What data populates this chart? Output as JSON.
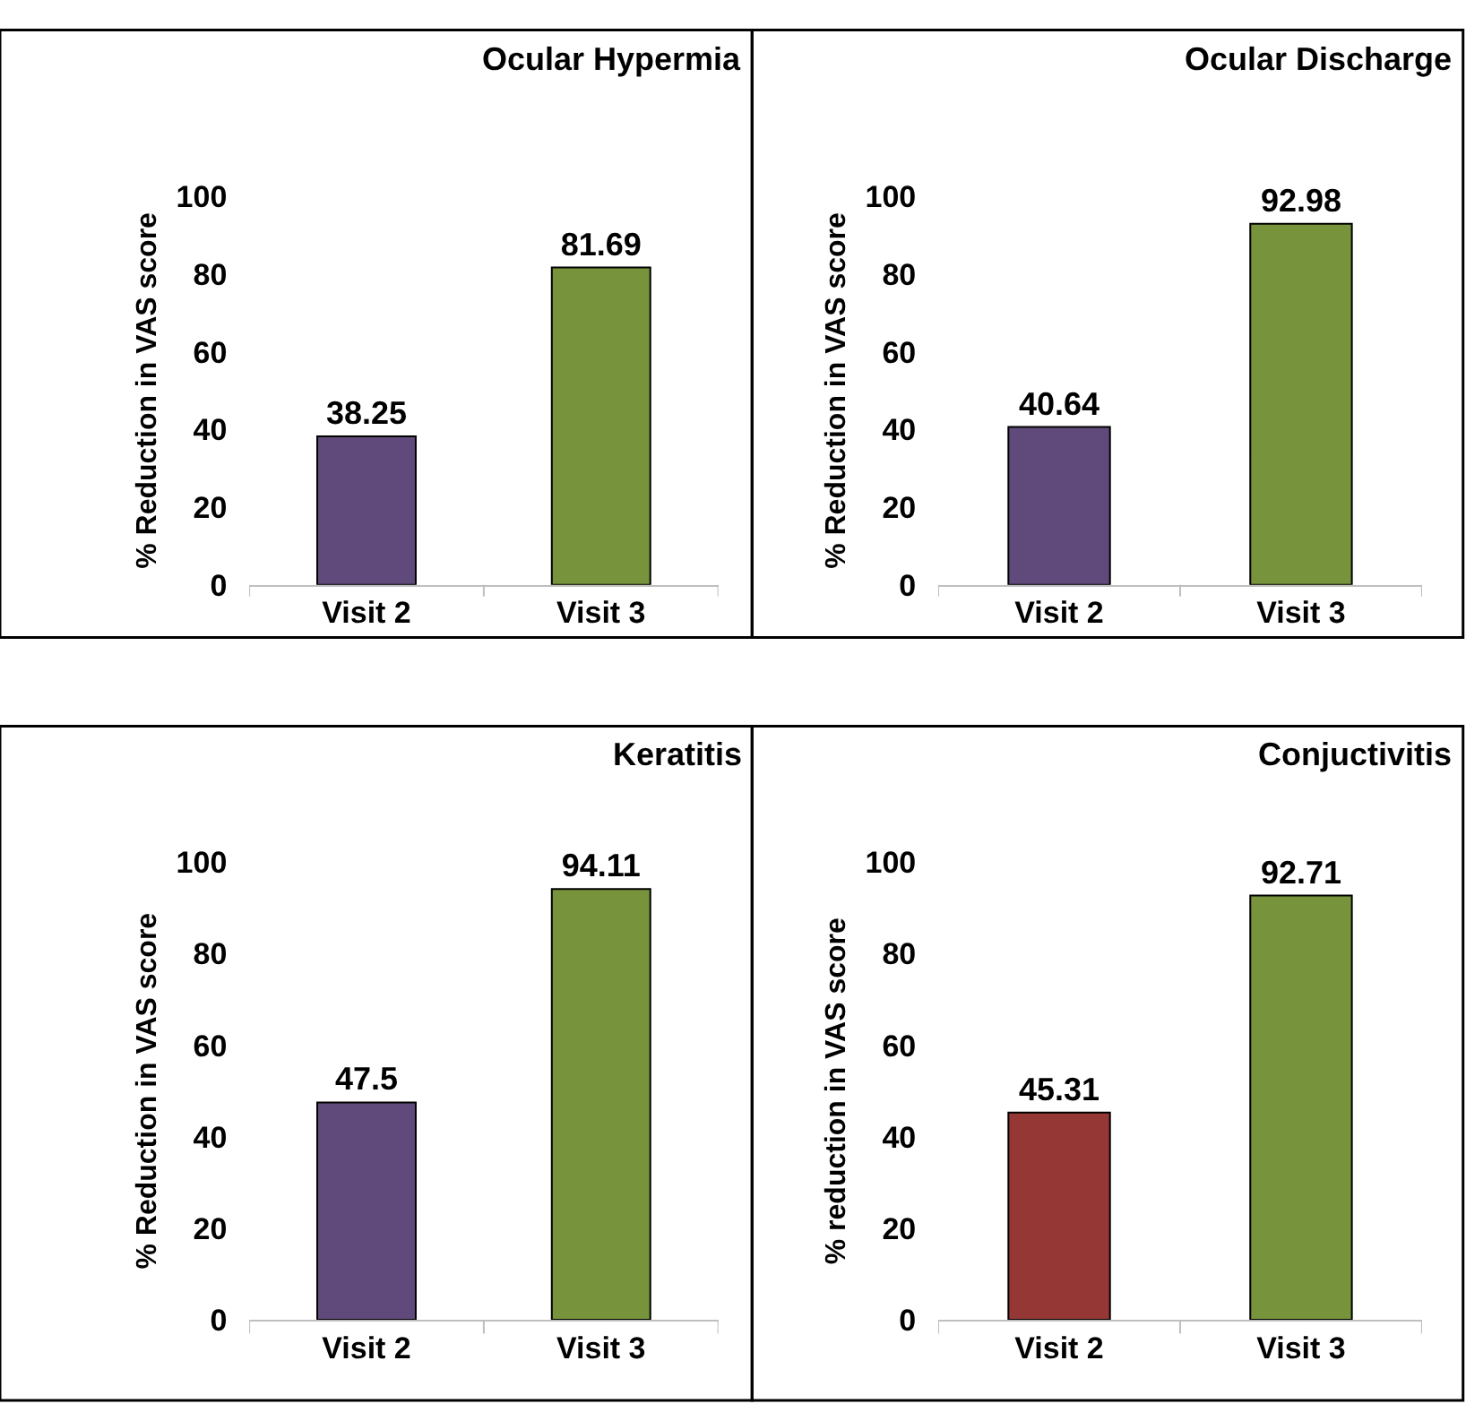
{
  "chart_data": [
    {
      "type": "bar",
      "title": "Ocular Hypermia",
      "ylabel": "% Reduction in VAS score",
      "categories": [
        "Visit 2",
        "Visit 3"
      ],
      "values": [
        38.25,
        81.69
      ],
      "colors": [
        "#604a7b",
        "#77933c"
      ],
      "ylim": [
        0,
        100
      ],
      "yticks": [
        0,
        20,
        40,
        60,
        80,
        100
      ],
      "data_labels": true
    },
    {
      "type": "bar",
      "title": "Ocular Discharge",
      "ylabel": "% Reduction in VAS score",
      "categories": [
        "Visit 2",
        "Visit 3"
      ],
      "values": [
        40.64,
        92.98
      ],
      "colors": [
        "#604a7b",
        "#77933c"
      ],
      "ylim": [
        0,
        100
      ],
      "yticks": [
        0,
        20,
        40,
        60,
        80,
        100
      ],
      "data_labels": true
    },
    {
      "type": "bar",
      "title": "Keratitis",
      "ylabel": "% Reduction in VAS score",
      "categories": [
        "Visit 2",
        "Visit 3"
      ],
      "values": [
        47.5,
        94.11
      ],
      "colors": [
        "#604a7b",
        "#77933c"
      ],
      "ylim": [
        0,
        100
      ],
      "yticks": [
        0,
        20,
        40,
        60,
        80,
        100
      ],
      "data_labels": true
    },
    {
      "type": "bar",
      "title": "Conjuctivitis",
      "ylabel": "% reduction in VAS score",
      "categories": [
        "Visit 2",
        "Visit 3"
      ],
      "values": [
        45.31,
        92.71
      ],
      "colors": [
        "#953735",
        "#77933c"
      ],
      "ylim": [
        0,
        100
      ],
      "yticks": [
        0,
        20,
        40,
        60,
        80,
        100
      ],
      "data_labels": true
    }
  ]
}
